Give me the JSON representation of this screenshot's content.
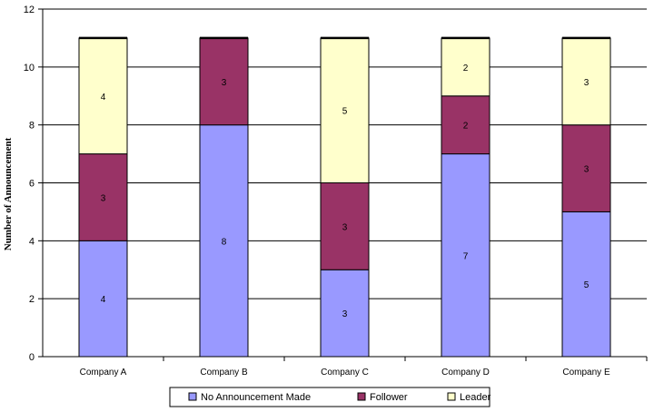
{
  "chart_data": {
    "type": "bar",
    "stacked": true,
    "categories": [
      "Company A",
      "Company B",
      "Company C",
      "Company D",
      "Company E"
    ],
    "series": [
      {
        "name": "No Announcement Made",
        "values": [
          4,
          8,
          3,
          7,
          5
        ],
        "color": "#9999ff"
      },
      {
        "name": "Follower",
        "values": [
          3,
          3,
          3,
          2,
          3
        ],
        "color": "#993366"
      },
      {
        "name": "Leader",
        "values": [
          4,
          0,
          5,
          2,
          3
        ],
        "color": "#ffffcc"
      }
    ],
    "title": "",
    "xlabel": "",
    "ylabel": "Number of Announcement",
    "ylim": [
      0,
      12
    ],
    "yticks": [
      0,
      2,
      4,
      6,
      8,
      10,
      12
    ],
    "grid": true,
    "legend_position": "bottom"
  }
}
